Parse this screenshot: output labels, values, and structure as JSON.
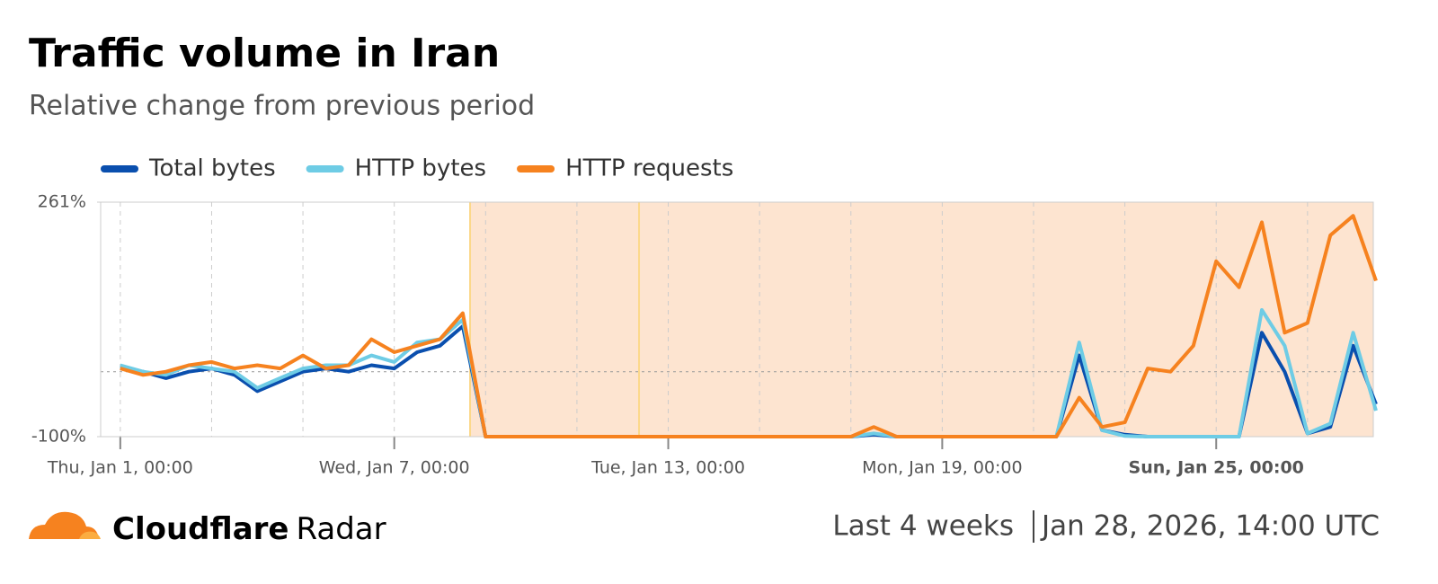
{
  "chart_data": {
    "type": "line",
    "title": "Traffic volume in Iran",
    "subtitle": "Relative change from previous period",
    "x": [
      0,
      0.5,
      1,
      1.5,
      2,
      2.5,
      3,
      3.5,
      4,
      4.5,
      5,
      5.5,
      6,
      6.5,
      7,
      7.5,
      8,
      8.5,
      9,
      9.5,
      10,
      10.5,
      11,
      11.5,
      12,
      12.5,
      13,
      13.5,
      14,
      14.5,
      15,
      15.5,
      16,
      16.5,
      17,
      17.5,
      18,
      18.5,
      19,
      19.5,
      20,
      20.5,
      21,
      21.5,
      22,
      22.5,
      23,
      23.5,
      24,
      24.5,
      25,
      25.5,
      26,
      26.5,
      27,
      27.5
    ],
    "series": [
      {
        "name": "Total bytes",
        "color": "#0a4fae",
        "values": [
          5,
          0,
          -10,
          0,
          5,
          -5,
          -30,
          -15,
          0,
          5,
          0,
          10,
          5,
          30,
          40,
          70,
          -100,
          -100,
          -100,
          -100,
          -100,
          -100,
          -100,
          -100,
          -100,
          -100,
          -100,
          -100,
          -100,
          -100,
          -100,
          -100,
          -100,
          -97,
          -100,
          -100,
          -100,
          -100,
          -100,
          -100,
          -100,
          -100,
          25,
          -90,
          -97,
          -100,
          -100,
          -100,
          -100,
          -100,
          60,
          0,
          -95,
          -85,
          40,
          -50
        ]
      },
      {
        "name": "HTTP bytes",
        "color": "#6ecce5",
        "values": [
          10,
          0,
          -5,
          10,
          5,
          0,
          -25,
          -10,
          5,
          10,
          10,
          25,
          15,
          45,
          50,
          80,
          -100,
          -100,
          -100,
          -100,
          -100,
          -100,
          -100,
          -100,
          -100,
          -100,
          -100,
          -100,
          -100,
          -100,
          -100,
          -100,
          -100,
          -95,
          -100,
          -100,
          -100,
          -100,
          -100,
          -100,
          -100,
          -100,
          45,
          -90,
          -99,
          -100,
          -100,
          -100,
          -100,
          -100,
          95,
          40,
          -95,
          -80,
          60,
          -60
        ]
      },
      {
        "name": "HTTP requests",
        "color": "#f6821f",
        "values": [
          5,
          -5,
          0,
          10,
          15,
          5,
          10,
          5,
          25,
          5,
          10,
          50,
          30,
          40,
          50,
          90,
          -100,
          -100,
          -100,
          -100,
          -100,
          -100,
          -100,
          -100,
          -100,
          -100,
          -100,
          -100,
          -100,
          -100,
          -100,
          -100,
          -100,
          -85,
          -100,
          -100,
          -100,
          -100,
          -100,
          -100,
          -100,
          -100,
          -40,
          -85,
          -78,
          5,
          0,
          40,
          170,
          130,
          230,
          60,
          75,
          210,
          240,
          140
        ]
      }
    ],
    "xlim": [
      -0.43,
      27.44
    ],
    "ylim": [
      -100,
      261
    ],
    "yticks": [
      {
        "value": -100,
        "label": "-100%"
      },
      {
        "value": 261,
        "label": "261%"
      }
    ],
    "xticks": [
      {
        "value": 0,
        "label": "Thu, Jan 1, 00:00"
      },
      {
        "value": 6,
        "label": "Wed, Jan 7, 00:00"
      },
      {
        "value": 12,
        "label": "Tue, Jan 13, 00:00"
      },
      {
        "value": 18,
        "label": "Mon, Jan 19, 00:00"
      },
      {
        "value": 24,
        "label": "Sun, Jan 25, 00:00"
      }
    ],
    "x_minor_grid": [
      2,
      4,
      8,
      10,
      14,
      16,
      20,
      22,
      26
    ],
    "zero_line": 0,
    "shaded_range": [
      7.66,
      27.44
    ],
    "event_lines": [
      7.66,
      11.36
    ],
    "legend": "top"
  },
  "footer": {
    "brand": "Cloudflare",
    "product": "Radar",
    "period": "Last 4 weeks",
    "timestamp": "Jan 28, 2026, 14:00 UTC"
  }
}
